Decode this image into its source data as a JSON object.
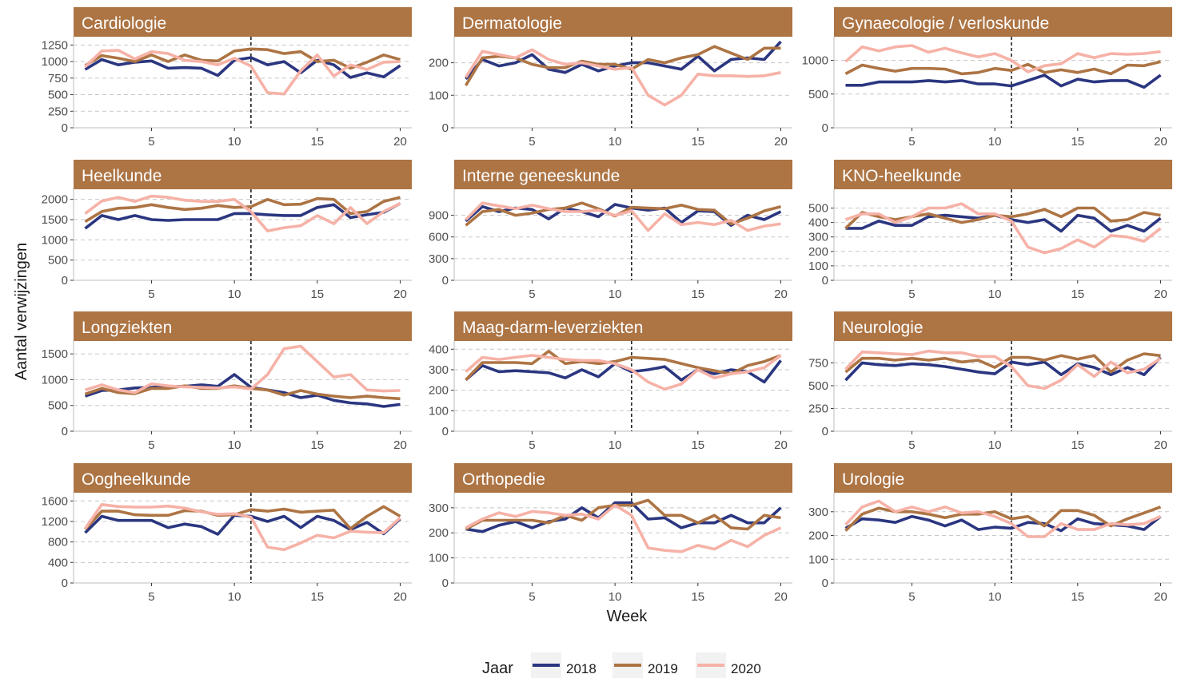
{
  "chart_data": {
    "type": "line",
    "xlabel": "Week",
    "ylabel": "Aantal verwijzingen",
    "x": [
      1,
      2,
      3,
      4,
      5,
      6,
      7,
      8,
      9,
      10,
      11,
      12,
      13,
      14,
      15,
      16,
      17,
      18,
      19,
      20
    ],
    "xticks": [
      5,
      10,
      15,
      20
    ],
    "xlim": [
      0.3,
      20.7
    ],
    "vline": 11,
    "legend": {
      "title": "Jaar",
      "position": "bottom"
    },
    "series_info": [
      {
        "name": "2018",
        "color": "#2b3680"
      },
      {
        "name": "2019",
        "color": "#ad7444"
      },
      {
        "name": "2020",
        "color": "#f6b2a7"
      }
    ],
    "panels": [
      {
        "title": "Cardiologie",
        "ylim": [
          0,
          1375
        ],
        "yticks": [
          0,
          250,
          500,
          750,
          1000,
          1250
        ],
        "series": [
          [
            880,
            1030,
            950,
            990,
            1010,
            900,
            910,
            900,
            790,
            1020,
            1060,
            950,
            1000,
            830,
            1020,
            950,
            760,
            830,
            770,
            940
          ],
          [
            940,
            1090,
            1050,
            1000,
            1100,
            1000,
            1100,
            1020,
            1010,
            1160,
            1190,
            1180,
            1120,
            1150,
            1000,
            1020,
            900,
            990,
            1100,
            1030
          ],
          [
            920,
            1160,
            1170,
            1040,
            1150,
            1120,
            1020,
            1000,
            950,
            1050,
            930,
            530,
            510,
            860,
            1100,
            780,
            950,
            880,
            990,
            1000
          ]
        ]
      },
      {
        "title": "Dermatologie",
        "ylim": [
          0,
          280
        ],
        "yticks": [
          0,
          100,
          200
        ],
        "series": [
          [
            150,
            210,
            190,
            200,
            225,
            180,
            170,
            195,
            175,
            190,
            200,
            200,
            190,
            180,
            220,
            175,
            210,
            215,
            210,
            265
          ],
          [
            130,
            215,
            220,
            215,
            195,
            185,
            185,
            205,
            195,
            195,
            180,
            210,
            200,
            215,
            225,
            250,
            230,
            210,
            245,
            245
          ],
          [
            155,
            235,
            225,
            215,
            240,
            210,
            195,
            200,
            190,
            180,
            185,
            100,
            70,
            100,
            165,
            160,
            160,
            158,
            160,
            170
          ]
        ]
      },
      {
        "title": "Gynaecologie / verloskunde",
        "ylim": [
          0,
          1350
        ],
        "yticks": [
          0,
          500,
          1000
        ],
        "series": [
          [
            630,
            630,
            680,
            680,
            680,
            700,
            680,
            700,
            650,
            650,
            620,
            700,
            780,
            620,
            720,
            680,
            700,
            700,
            600,
            780
          ],
          [
            800,
            930,
            880,
            840,
            880,
            880,
            870,
            800,
            820,
            880,
            850,
            940,
            820,
            860,
            820,
            870,
            800,
            930,
            920,
            980
          ],
          [
            980,
            1200,
            1140,
            1200,
            1220,
            1120,
            1180,
            1110,
            1050,
            1100,
            1000,
            830,
            920,
            950,
            1100,
            1040,
            1100,
            1090,
            1100,
            1130
          ]
        ]
      },
      {
        "title": "Heelkunde",
        "ylim": [
          0,
          2250
        ],
        "yticks": [
          0,
          500,
          1000,
          1500,
          2000
        ],
        "series": [
          [
            1280,
            1600,
            1500,
            1600,
            1500,
            1480,
            1500,
            1500,
            1500,
            1650,
            1650,
            1620,
            1600,
            1600,
            1800,
            1870,
            1550,
            1620,
            1680,
            1900
          ],
          [
            1450,
            1700,
            1780,
            1800,
            1870,
            1800,
            1750,
            1780,
            1850,
            1800,
            1820,
            2000,
            1870,
            1880,
            2020,
            2000,
            1650,
            1700,
            1950,
            2050
          ],
          [
            1650,
            1960,
            2050,
            1950,
            2080,
            2050,
            1980,
            1950,
            1950,
            2000,
            1700,
            1220,
            1300,
            1350,
            1600,
            1400,
            1800,
            1400,
            1700,
            1900
          ]
        ]
      },
      {
        "title": "Interne geneeskunde",
        "ylim": [
          0,
          1260
        ],
        "yticks": [
          0,
          300,
          600,
          900
        ],
        "series": [
          [
            820,
            1020,
            950,
            1000,
            980,
            850,
            1000,
            950,
            880,
            1050,
            1000,
            970,
            1000,
            800,
            960,
            950,
            760,
            900,
            840,
            950
          ],
          [
            760,
            950,
            980,
            900,
            930,
            980,
            1000,
            1070,
            990,
            890,
            1010,
            1000,
            990,
            1040,
            980,
            970,
            780,
            860,
            960,
            1020
          ],
          [
            840,
            1070,
            1030,
            990,
            1040,
            990,
            950,
            950,
            970,
            900,
            960,
            690,
            920,
            770,
            800,
            770,
            830,
            690,
            750,
            780
          ]
        ]
      },
      {
        "title": "KNO-heelkunde",
        "ylim": [
          0,
          630
        ],
        "yticks": [
          0,
          100,
          200,
          300,
          400,
          500
        ],
        "series": [
          [
            360,
            360,
            410,
            380,
            380,
            440,
            450,
            440,
            430,
            450,
            420,
            400,
            420,
            340,
            450,
            430,
            340,
            380,
            340,
            430
          ],
          [
            360,
            470,
            440,
            420,
            440,
            460,
            430,
            400,
            420,
            450,
            440,
            460,
            490,
            440,
            500,
            500,
            410,
            420,
            470,
            450
          ],
          [
            420,
            460,
            460,
            400,
            440,
            500,
            500,
            530,
            460,
            460,
            410,
            230,
            190,
            220,
            280,
            230,
            310,
            300,
            270,
            360
          ]
        ]
      },
      {
        "title": "Longziekten",
        "ylim": [
          0,
          1750
        ],
        "yticks": [
          0,
          500,
          1000,
          1500
        ],
        "series": [
          [
            680,
            790,
            800,
            840,
            850,
            870,
            870,
            900,
            870,
            1100,
            850,
            800,
            750,
            650,
            700,
            600,
            550,
            530,
            480,
            520
          ],
          [
            720,
            830,
            750,
            730,
            830,
            830,
            880,
            830,
            830,
            880,
            830,
            800,
            700,
            790,
            720,
            680,
            650,
            680,
            650,
            630
          ],
          [
            800,
            900,
            800,
            750,
            920,
            880,
            860,
            850,
            840,
            860,
            820,
            1100,
            1600,
            1650,
            1350,
            1050,
            1100,
            800,
            780,
            790
          ]
        ]
      },
      {
        "title": "Maag-darm-leverziekten",
        "ylim": [
          0,
          440
        ],
        "yticks": [
          0,
          100,
          200,
          300,
          400
        ],
        "series": [
          [
            250,
            320,
            290,
            295,
            290,
            285,
            260,
            300,
            265,
            330,
            290,
            300,
            315,
            250,
            300,
            280,
            300,
            290,
            240,
            345
          ],
          [
            250,
            335,
            335,
            335,
            330,
            390,
            330,
            340,
            330,
            340,
            360,
            355,
            350,
            330,
            310,
            295,
            280,
            320,
            340,
            370
          ],
          [
            290,
            360,
            350,
            360,
            370,
            360,
            350,
            345,
            345,
            330,
            300,
            240,
            205,
            230,
            300,
            260,
            280,
            290,
            310,
            370
          ]
        ]
      },
      {
        "title": "Neurologie",
        "ylim": [
          0,
          990
        ],
        "yticks": [
          0,
          250,
          500,
          750
        ],
        "series": [
          [
            560,
            750,
            730,
            720,
            740,
            730,
            710,
            680,
            650,
            630,
            760,
            730,
            760,
            620,
            740,
            700,
            620,
            700,
            620,
            810
          ],
          [
            650,
            800,
            800,
            780,
            800,
            780,
            800,
            760,
            780,
            700,
            810,
            810,
            780,
            830,
            790,
            830,
            650,
            780,
            850,
            830
          ],
          [
            680,
            870,
            860,
            850,
            840,
            880,
            860,
            860,
            820,
            820,
            710,
            500,
            470,
            560,
            730,
            600,
            760,
            640,
            680,
            800
          ]
        ]
      },
      {
        "title": "Oogheelkunde",
        "ylim": [
          0,
          1760
        ],
        "yticks": [
          0,
          400,
          800,
          1200,
          1600
        ],
        "series": [
          [
            980,
            1300,
            1220,
            1220,
            1220,
            1080,
            1150,
            1100,
            950,
            1320,
            1300,
            1200,
            1300,
            1080,
            1300,
            1220,
            1040,
            1180,
            960,
            1250
          ],
          [
            1050,
            1400,
            1400,
            1330,
            1320,
            1320,
            1410,
            1400,
            1320,
            1330,
            1430,
            1400,
            1440,
            1380,
            1400,
            1420,
            1060,
            1300,
            1490,
            1300
          ],
          [
            1060,
            1530,
            1490,
            1480,
            1480,
            1500,
            1460,
            1390,
            1340,
            1350,
            1280,
            700,
            650,
            780,
            930,
            880,
            1010,
            990,
            980,
            1270
          ]
        ]
      },
      {
        "title": "Orthopedie",
        "ylim": [
          0,
          360
        ],
        "yticks": [
          0,
          100,
          200,
          300
        ],
        "series": [
          [
            215,
            205,
            230,
            245,
            220,
            245,
            255,
            300,
            260,
            320,
            320,
            255,
            260,
            220,
            240,
            240,
            270,
            240,
            240,
            300
          ],
          [
            215,
            250,
            250,
            250,
            250,
            240,
            270,
            250,
            300,
            310,
            310,
            330,
            270,
            270,
            240,
            270,
            220,
            215,
            270,
            260
          ],
          [
            220,
            255,
            280,
            265,
            285,
            280,
            270,
            275,
            255,
            310,
            270,
            140,
            130,
            125,
            150,
            135,
            170,
            145,
            190,
            220
          ]
        ]
      },
      {
        "title": "Urologie",
        "ylim": [
          0,
          380
        ],
        "yticks": [
          0,
          100,
          200,
          300
        ],
        "series": [
          [
            230,
            270,
            265,
            255,
            280,
            265,
            240,
            265,
            225,
            235,
            230,
            255,
            250,
            220,
            270,
            250,
            245,
            240,
            225,
            280
          ],
          [
            220,
            290,
            315,
            300,
            300,
            290,
            275,
            290,
            290,
            300,
            270,
            280,
            240,
            305,
            305,
            285,
            240,
            270,
            295,
            320
          ],
          [
            245,
            320,
            345,
            300,
            320,
            300,
            320,
            295,
            300,
            280,
            250,
            195,
            195,
            250,
            225,
            225,
            250,
            245,
            250,
            280
          ]
        ]
      }
    ]
  }
}
